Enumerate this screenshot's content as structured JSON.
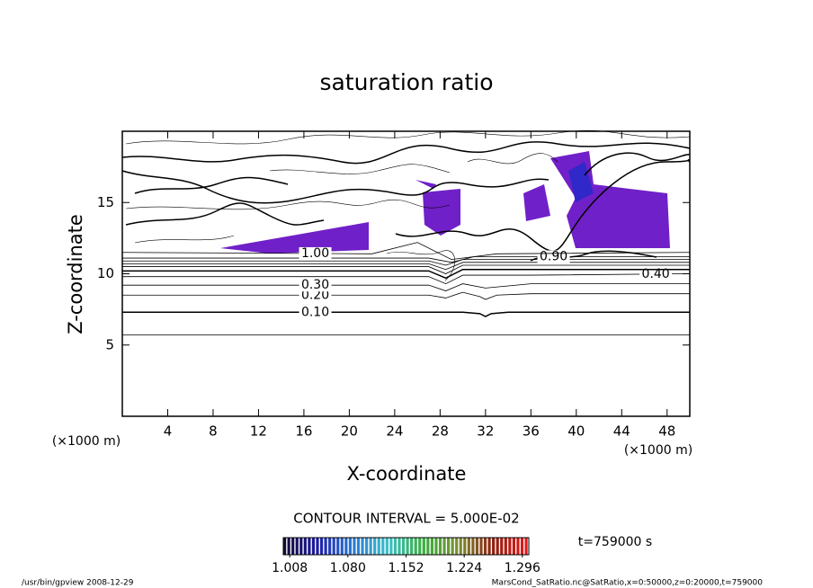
{
  "chart_data": {
    "type": "contour",
    "title": "saturation ratio",
    "xlabel": "X-coordinate",
    "ylabel": "Z-coordinate",
    "x_unit": "(×1000 m)",
    "y_unit": "(×1000 m)",
    "xlim": [
      0,
      50
    ],
    "ylim": [
      0,
      20
    ],
    "xticks": [
      4,
      8,
      12,
      16,
      20,
      24,
      28,
      32,
      36,
      40,
      44,
      48
    ],
    "yticks": [
      5,
      10,
      15
    ],
    "contours": [
      {
        "level": 0.05,
        "x": [
          0,
          50
        ],
        "z": [
          5.7,
          5.7
        ]
      },
      {
        "level": 0.1,
        "label": "0.10",
        "label_at": 17,
        "x": [
          0,
          30,
          31.5,
          32,
          32.5,
          34,
          50
        ],
        "z": [
          7.3,
          7.3,
          7.2,
          7.0,
          7.2,
          7.3,
          7.3
        ]
      },
      {
        "level": 0.2,
        "label": "0.20",
        "label_at": 17,
        "x": [
          0,
          27,
          28.5,
          30,
          31.5,
          32,
          33,
          36,
          50
        ],
        "z": [
          8.5,
          8.5,
          8.3,
          8.7,
          8.4,
          8.2,
          8.5,
          8.6,
          8.6
        ]
      },
      {
        "level": 0.3,
        "label": "0.30",
        "label_at": 17,
        "x": [
          0,
          27,
          28.5,
          30,
          32,
          36,
          50
        ],
        "z": [
          9.2,
          9.2,
          8.8,
          9.3,
          9.0,
          9.3,
          9.3
        ]
      },
      {
        "level": 0.4,
        "label": "0.40",
        "label_at": 47,
        "x": [
          0,
          27,
          28.5,
          30,
          36,
          50
        ],
        "z": [
          9.8,
          9.8,
          9.3,
          9.9,
          9.9,
          10.0
        ]
      },
      {
        "level": 0.5,
        "x": [
          0,
          27,
          28.5,
          30,
          50
        ],
        "z": [
          10.2,
          10.2,
          9.7,
          10.3,
          10.3
        ]
      },
      {
        "level": 0.6,
        "x": [
          0,
          27,
          28.5,
          30,
          50
        ],
        "z": [
          10.5,
          10.5,
          10.0,
          10.6,
          10.6
        ]
      },
      {
        "level": 0.7,
        "x": [
          0,
          27,
          28.5,
          30,
          50
        ],
        "z": [
          10.7,
          10.7,
          10.3,
          10.8,
          10.8
        ]
      },
      {
        "level": 0.8,
        "x": [
          0,
          27,
          28.5,
          30,
          50
        ],
        "z": [
          10.9,
          10.9,
          10.6,
          11.0,
          11.0
        ]
      },
      {
        "level": 0.9,
        "label": "0.90",
        "label_at": 38,
        "x": [
          0,
          27,
          29,
          31,
          50
        ],
        "z": [
          11.1,
          11.1,
          10.8,
          11.2,
          11.2
        ]
      },
      {
        "level": 1.0,
        "label": "1.00",
        "label_at": 17,
        "x": [
          0,
          22,
          26,
          29,
          33,
          50
        ],
        "z": [
          11.5,
          11.4,
          12.2,
          11.0,
          11.4,
          11.5
        ]
      }
    ],
    "contour_interval": "CONTOUR INTERVAL = 5.000E-02",
    "colorbar": {
      "clim": [
        1.0,
        1.304
      ],
      "colors": [
        "#140830",
        "#1c1ca8",
        "#2a7ad8",
        "#3ac0c8",
        "#38b040",
        "#7a9030",
        "#902010",
        "#e81818"
      ],
      "ticks": [
        1.008,
        {
          "value": 1.08,
          "label": "1.080"
        },
        1.152,
        1.224,
        1.296
      ]
    },
    "time_label": "t=759000 s",
    "footer_left": "/usr/bin/gpview   2008-12-29",
    "footer_right": "MarsCond_SatRatio.nc@SatRatio,x=0:50000,z=0:20000,t=759000"
  }
}
